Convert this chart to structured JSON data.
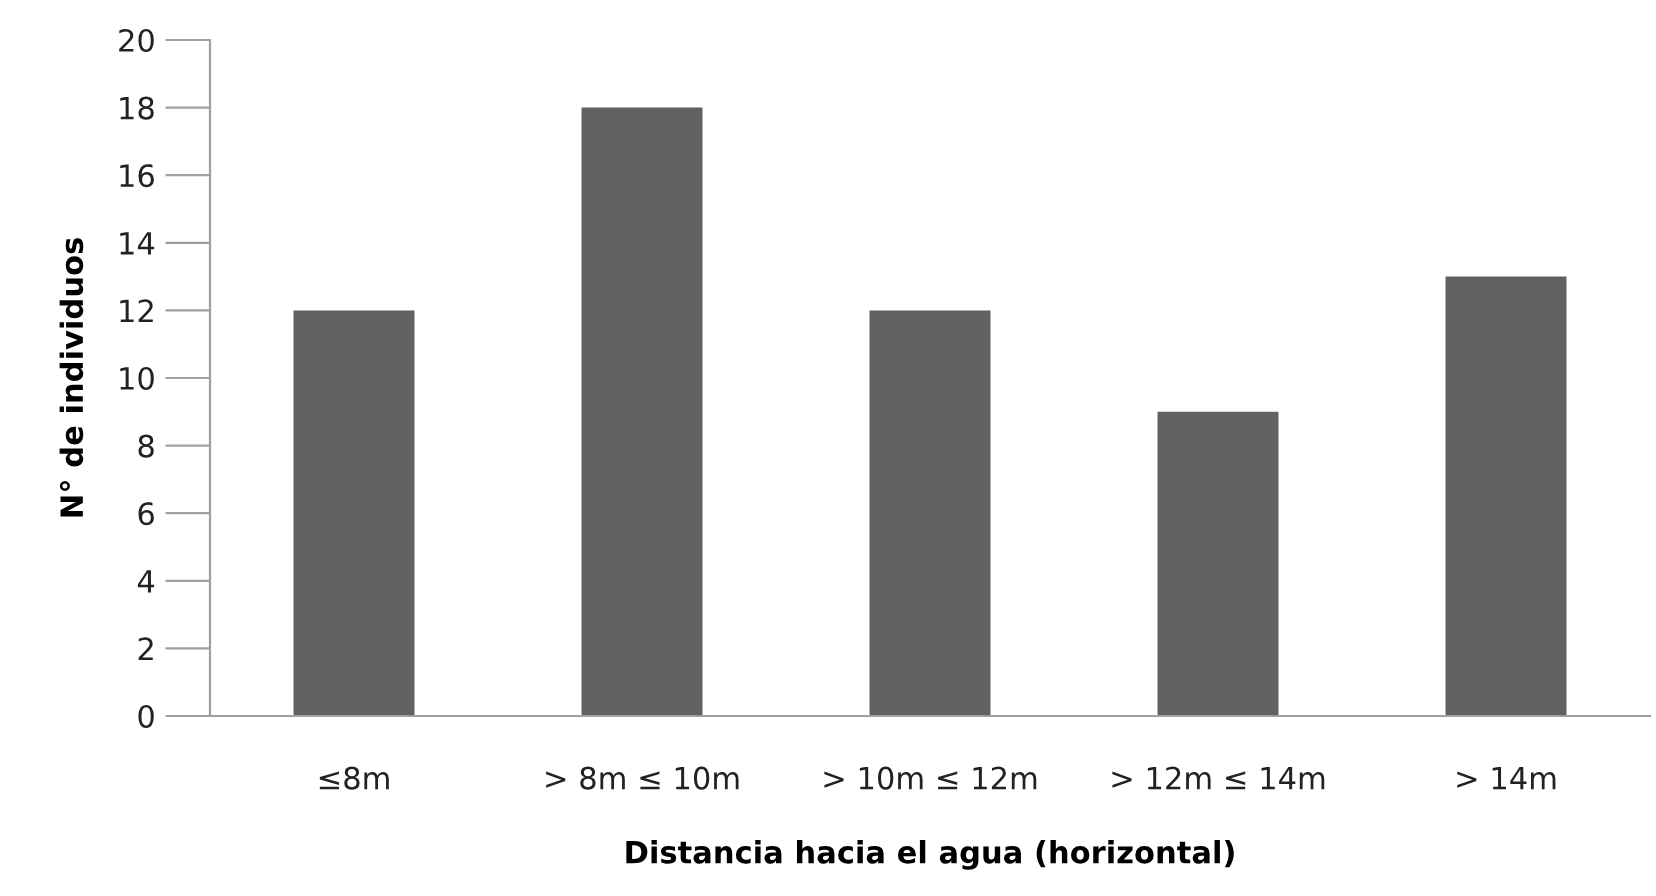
{
  "chart_data": {
    "type": "bar",
    "xlabel": "Distancia hacia el agua (horizontal)",
    "ylabel": "N° de individuos",
    "categories": [
      "≤8m",
      "> 8m ≤ 10m",
      "> 10m ≤ 12m",
      "> 12m ≤ 14m",
      "> 14m"
    ],
    "values": [
      12,
      18,
      12,
      9,
      13
    ],
    "color": "#616161",
    "ylim": [
      0,
      20
    ],
    "yticks": [
      0,
      2,
      4,
      6,
      8,
      10,
      12,
      14,
      16,
      18,
      20
    ],
    "grid": false
  }
}
